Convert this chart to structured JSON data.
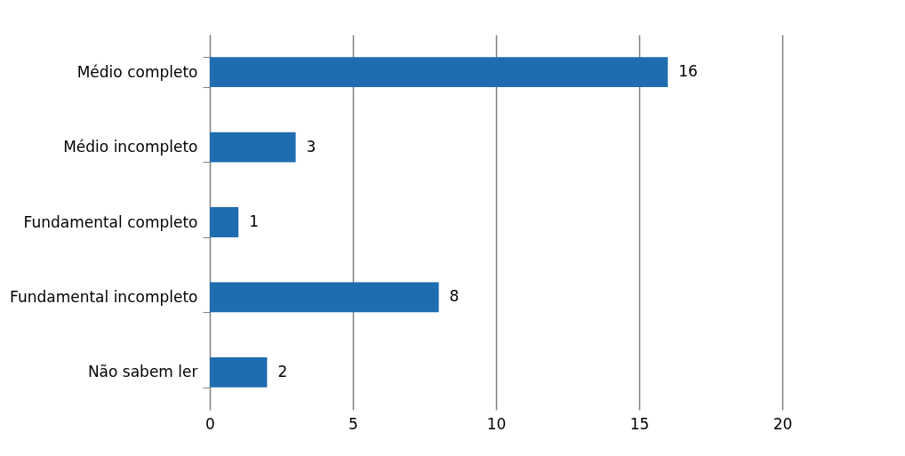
{
  "chart_data": {
    "type": "bar",
    "orientation": "horizontal",
    "categories": [
      "Médio completo",
      "Médio incompleto",
      "Fundamental completo",
      "Fundamental incompleto",
      "Não sabem ler"
    ],
    "values": [
      16,
      3,
      1,
      8,
      2
    ],
    "color": "#1f6cb0",
    "xlim": [
      0,
      20
    ],
    "xticks": [
      0,
      5,
      10,
      15,
      20
    ],
    "grid": "x",
    "data_labels": true
  }
}
